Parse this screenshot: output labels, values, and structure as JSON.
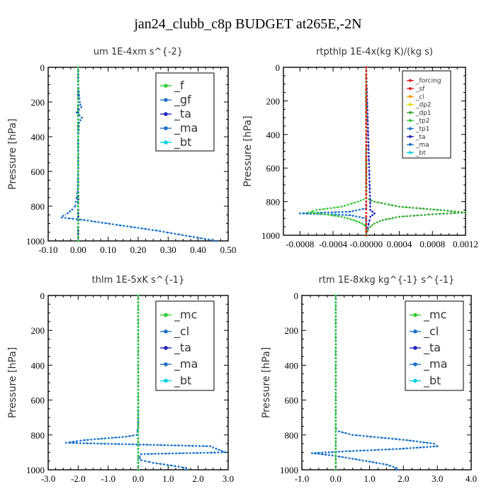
{
  "figure_title": "jan24_clubb_c8p  BUDGET at265E,-2N",
  "chart_data": [
    {
      "type": "line",
      "title": "um   1E-4xm s^{-2}",
      "ylabel": "Pressure [hPa]",
      "xlim": [
        -0.1,
        0.5
      ],
      "xticks": [
        -0.1,
        0.0,
        0.1,
        0.2,
        0.3,
        0.4,
        0.5
      ],
      "xtick_labels": [
        "-0.10",
        "0.00",
        "0.10",
        "0.20",
        "0.30",
        "0.40",
        "0.50"
      ],
      "ylim": [
        0,
        1000
      ],
      "yticks": [
        0,
        200,
        400,
        600,
        800,
        1000
      ],
      "ytick_labels": [
        "0",
        "200",
        "400",
        "600",
        "800",
        "1000"
      ],
      "legend_position": "top-right",
      "series": [
        {
          "name": "_f",
          "color": "#33cc33",
          "pressure": [
            0,
            50,
            100,
            150,
            200,
            250,
            300,
            350,
            400,
            450,
            500,
            550,
            600,
            650,
            700,
            750,
            800,
            850,
            900,
            950,
            1000
          ],
          "values": [
            0,
            0,
            0,
            0,
            0,
            0,
            0,
            0,
            0,
            0,
            0,
            0,
            0,
            0,
            0,
            0,
            0,
            0,
            0,
            0,
            0
          ]
        },
        {
          "name": "_gf",
          "color": "#1a73c8",
          "pressure": [
            0,
            100,
            200,
            230,
            260,
            290,
            320,
            400,
            500,
            600,
            700,
            750,
            800,
            820,
            840,
            855,
            865,
            880,
            895,
            910,
            925,
            940,
            955,
            970,
            985,
            1000
          ],
          "values": [
            0.0,
            0.0,
            0.005,
            0.01,
            -0.005,
            0.012,
            0.003,
            0.0,
            0.0,
            0.0,
            -0.002,
            -0.005,
            -0.01,
            -0.02,
            -0.035,
            -0.05,
            -0.055,
            0.02,
            0.08,
            0.14,
            0.2,
            0.26,
            0.31,
            0.36,
            0.41,
            0.46
          ]
        },
        {
          "name": "_ta",
          "color": "#2222bb",
          "pressure": [
            0,
            200,
            400,
            600,
            800,
            1000
          ],
          "values": [
            0,
            0,
            0,
            0,
            0,
            0
          ]
        },
        {
          "name": "_ma",
          "color": "#1a73c8",
          "pressure": [
            0,
            200,
            400,
            600,
            800,
            1000
          ],
          "values": [
            0,
            0,
            0,
            0,
            0,
            0
          ]
        },
        {
          "name": "_bt",
          "color": "#00d0e0",
          "pressure": [
            0,
            200,
            400,
            600,
            800,
            1000
          ],
          "values": [
            0,
            0,
            0,
            0,
            0,
            0
          ]
        }
      ]
    },
    {
      "type": "line",
      "title": "rtpthlp   1E-4x(kg K)/(kg s)",
      "ylabel": "Pressure [hPa]",
      "xlim": [
        -0.001,
        0.0012
      ],
      "xticks": [
        -0.0008,
        -0.0004,
        0.0,
        0.0004,
        0.0008,
        0.0012
      ],
      "xtick_labels": [
        "-0.0008",
        "-0.0004",
        "-0.00000",
        "0.0004",
        "0.0008",
        "0.0012"
      ],
      "ylim": [
        0,
        1000
      ],
      "yticks": [
        0,
        200,
        400,
        600,
        800,
        1000
      ],
      "ytick_labels": [
        "0",
        "200",
        "400",
        "600",
        "800",
        "1000"
      ],
      "legend_position": "top-right",
      "series": [
        {
          "name": "_forcing",
          "color": "#dd2222",
          "pressure": [
            0,
            200,
            400,
            600,
            800,
            1000
          ],
          "values": [
            0,
            0,
            0,
            0,
            0,
            0
          ]
        },
        {
          "name": "_sf",
          "color": "#dd2222",
          "pressure": [
            0,
            200,
            400,
            600,
            800,
            1000
          ],
          "values": [
            0,
            0,
            0,
            0,
            0,
            0
          ]
        },
        {
          "name": "_cl",
          "color": "#ff9900",
          "pressure": [
            0,
            200,
            400,
            600,
            800,
            1000
          ],
          "values": [
            0,
            0,
            0,
            0,
            0,
            0
          ]
        },
        {
          "name": "_dp2",
          "color": "#dddd00",
          "pressure": [
            0,
            200,
            400,
            600,
            800,
            1000
          ],
          "values": [
            0,
            0,
            0,
            0,
            0,
            0
          ]
        },
        {
          "name": "_dp1",
          "color": "#33aa33",
          "pressure": [
            0,
            780,
            800,
            830,
            850,
            865,
            875,
            890,
            910,
            930,
            950,
            970,
            990,
            1000
          ],
          "values": [
            0,
            0,
            0.0001,
            0.0004,
            0.0009,
            0.0012,
            0.0008,
            0.0004,
            0.0002,
            0.0001,
            5e-05,
            2e-05,
            0,
            0
          ]
        },
        {
          "name": "_tp2",
          "color": "#33cc33",
          "pressure": [
            0,
            780,
            800,
            830,
            850,
            865,
            875,
            890,
            910,
            930,
            950,
            970,
            990,
            1000
          ],
          "values": [
            0,
            0,
            -0.0001,
            -0.0003,
            -0.0006,
            -0.0007,
            -0.0005,
            -0.0003,
            -0.00015,
            -5e-05,
            0,
            0,
            0,
            0
          ]
        },
        {
          "name": "_tp1",
          "color": "#1a73c8",
          "pressure": [
            0,
            840,
            860,
            870,
            880,
            900,
            1000
          ],
          "values": [
            0,
            0,
            -0.0002,
            -0.0008,
            -0.0002,
            0,
            0
          ]
        },
        {
          "name": "_ta",
          "color": "#2222bb",
          "pressure": [
            0,
            850,
            870,
            890,
            1000
          ],
          "values": [
            0,
            5e-05,
            0.0001,
            5e-05,
            0
          ]
        },
        {
          "name": "_ma",
          "color": "#1a73c8",
          "pressure": [
            0,
            200,
            400,
            600,
            800,
            1000
          ],
          "values": [
            0,
            0,
            0,
            0,
            0,
            0
          ]
        },
        {
          "name": "_bt",
          "color": "#00d0e0",
          "pressure": [
            0,
            200,
            400,
            600,
            800,
            1000
          ],
          "values": [
            0,
            0,
            0,
            0,
            0,
            0
          ]
        }
      ]
    },
    {
      "type": "line",
      "title": "thlm   1E-5xK  s^{-1}",
      "ylabel": "Pressure [hPa]",
      "xlim": [
        -3.0,
        3.0
      ],
      "xticks": [
        -3.0,
        -2.0,
        -1.0,
        0.0,
        1.0,
        2.0,
        3.0
      ],
      "xtick_labels": [
        "-3.0",
        "-2.0",
        "-1.0",
        "0.0",
        "1.0",
        "2.0",
        "3.0"
      ],
      "ylim": [
        0,
        1000
      ],
      "yticks": [
        0,
        200,
        400,
        600,
        800,
        1000
      ],
      "ytick_labels": [
        "0",
        "200",
        "400",
        "600",
        "800",
        "1000"
      ],
      "legend_position": "top-right",
      "series": [
        {
          "name": "_mc",
          "color": "#33cc33",
          "pressure": [
            0,
            200,
            400,
            600,
            800,
            1000
          ],
          "values": [
            0,
            0,
            0,
            0,
            0,
            0
          ]
        },
        {
          "name": "_cl",
          "color": "#1a73c8",
          "pressure": [
            0,
            200,
            400,
            600,
            750,
            800,
            810,
            830,
            845,
            865,
            900,
            910,
            930,
            945,
            960,
            975,
            990,
            1000
          ],
          "values": [
            0,
            0,
            0,
            0,
            0,
            -0.05,
            -0.4,
            -1.8,
            -2.4,
            2.4,
            2.9,
            0.1,
            0.05,
            0.1,
            0.5,
            1.1,
            1.6,
            1.6
          ]
        },
        {
          "name": "_ta",
          "color": "#2222bb",
          "pressure": [
            0,
            200,
            400,
            600,
            800,
            1000
          ],
          "values": [
            0,
            0,
            0,
            0,
            0,
            0
          ]
        },
        {
          "name": "_ma",
          "color": "#1a73c8",
          "pressure": [
            0,
            200,
            400,
            600,
            800,
            1000
          ],
          "values": [
            0,
            0,
            0,
            0,
            0,
            0
          ]
        },
        {
          "name": "_bt",
          "color": "#00d0e0",
          "pressure": [
            0,
            200,
            400,
            600,
            800,
            1000
          ],
          "values": [
            0,
            0,
            0,
            0,
            0,
            0
          ]
        }
      ]
    },
    {
      "type": "line",
      "title": "rtm   1E-8xkg kg^{-1} s^{-1}",
      "ylabel": "Pressure [hPa]",
      "xlim": [
        -1.0,
        4.0
      ],
      "xticks": [
        -1.0,
        0.0,
        1.0,
        2.0,
        3.0,
        4.0
      ],
      "xtick_labels": [
        "-1.0",
        "0.0",
        "1.0",
        "2.0",
        "3.0",
        "4.0"
      ],
      "ylim": [
        0,
        1000
      ],
      "yticks": [
        0,
        200,
        400,
        600,
        800,
        1000
      ],
      "ytick_labels": [
        "0",
        "200",
        "400",
        "600",
        "800",
        "1000"
      ],
      "legend_position": "top-right",
      "series": [
        {
          "name": "_mc",
          "color": "#33cc33",
          "pressure": [
            0,
            200,
            400,
            600,
            800,
            1000
          ],
          "values": [
            0,
            0,
            0,
            0,
            0,
            0
          ]
        },
        {
          "name": "_cl",
          "color": "#1a73c8",
          "pressure": [
            0,
            200,
            400,
            600,
            760,
            780,
            800,
            830,
            850,
            865,
            880,
            895,
            905,
            915,
            930,
            950,
            970,
            990,
            1000
          ],
          "values": [
            0,
            0,
            0,
            0,
            0,
            0.1,
            0.5,
            2.1,
            2.9,
            3.0,
            1.9,
            0.2,
            -0.7,
            -0.2,
            0.3,
            0.9,
            1.5,
            1.8,
            1.8
          ]
        },
        {
          "name": "_ta",
          "color": "#2222bb",
          "pressure": [
            0,
            200,
            400,
            600,
            800,
            1000
          ],
          "values": [
            0,
            0,
            0,
            0,
            0,
            0
          ]
        },
        {
          "name": "_ma",
          "color": "#1a73c8",
          "pressure": [
            0,
            200,
            400,
            600,
            800,
            1000
          ],
          "values": [
            0,
            0,
            0,
            0,
            0,
            0
          ]
        },
        {
          "name": "_bt",
          "color": "#00d0e0",
          "pressure": [
            0,
            200,
            400,
            600,
            800,
            1000
          ],
          "values": [
            0,
            0,
            0,
            0,
            0,
            0
          ]
        }
      ]
    }
  ]
}
